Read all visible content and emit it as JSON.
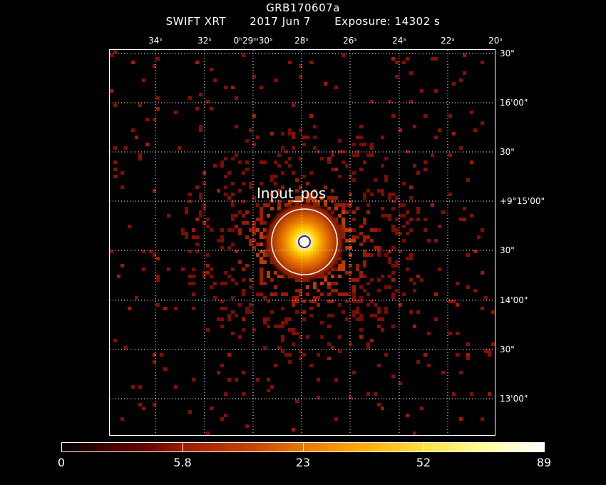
{
  "header": {
    "title": "GRB170607a",
    "instrument": "SWIFT XRT",
    "date": "2017 Jun  7",
    "exposure": "Exposure: 14302 s"
  },
  "source_label": "Input_pos",
  "ra_ticks": [
    "34ˢ",
    "32ˢ",
    "0ʰ29ᵐ30ˢ",
    "28ˢ",
    "26ˢ",
    "24ˢ",
    "22ˢ",
    "20ˢ"
  ],
  "dec_ticks": [
    "30\"",
    "16'00\"",
    "30\"",
    "+9°15'00\"",
    "30\"",
    "14'00\"",
    "30\"",
    "13'00\""
  ],
  "colorbar": {
    "labels": [
      "0",
      "5.8",
      "23",
      "52",
      "89"
    ]
  },
  "colors": {
    "background": "#000000",
    "grid": "#ffffff",
    "source_circle": "#ffffff",
    "target_circle": "#1a1aff",
    "faint_pixel": "#8a0e00"
  }
}
